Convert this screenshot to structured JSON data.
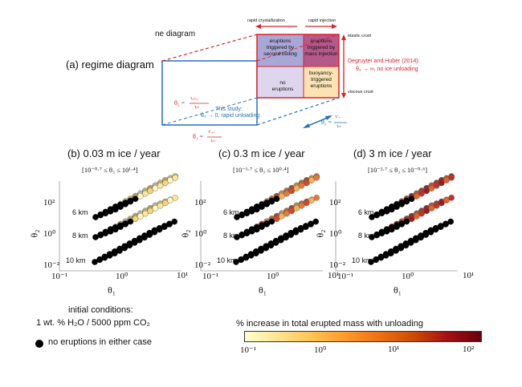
{
  "diagram": {
    "corner_title": "ne diagram",
    "panel_a_title": "(a) regime diagram",
    "top_left_arrow": "rapid crystallization",
    "top_right_arrow": "rapid injection",
    "elastic": "elastic crust",
    "viscous": "viscous crust",
    "region_boiling": "eruptions triggered by second boiling",
    "region_mass": "eruptions triggered by mass injection",
    "region_none": "no eruptions",
    "region_buoy": "buoyancy-triggered eruptions",
    "degruyter_1": "Degruyter and Huber (2014):",
    "degruyter_2": "θ₃ → ∞, no ice unloading",
    "study_1": "This study:",
    "study_2": "θ₃ → 0, rapid unloading",
    "theta2_lhs": "θ₂ =",
    "theta2_num": "τᵣₑₗₐₓ",
    "theta2_den": "τᵢₙ",
    "theta1_lhs": "θ₁ =",
    "theta1_num": "τᶜₒₒₗ",
    "theta1_den": "τᵢₙ",
    "theta3_lhs": "θ₃ =",
    "theta3_num": "τᵢᶜₑ",
    "theta3_den": "τᵢₙ",
    "colors": {
      "boiling": "#a9a7d6",
      "mass": "#b5598a",
      "buoy": "#fbe3b4",
      "blue": "#2a6fb5",
      "red": "#d8232a"
    }
  },
  "panels": [
    {
      "title": "(b) 0.03 m ice / year",
      "range": "[10⁻⁰·⁷ ≤ θ₃ ≤ 10¹·⁴]",
      "palette": [
        "#fff5c0",
        "#fbe79a",
        "#f4d47a"
      ]
    },
    {
      "title": "(c) 0.3 m ice / year",
      "range": "[10⁻¹·⁷ ≤ θ₃ ≤ 10⁰·⁴]",
      "palette": [
        "#f5b05a",
        "#e5793a",
        "#cf4a2a"
      ]
    },
    {
      "title": "(d) 3 m ice / year",
      "range": "[10⁻²·⁷ ≤ θ₃ ≤ 10⁻⁰·⁶]",
      "palette": [
        "#e4622e",
        "#c33224",
        "#9a1c1f"
      ]
    }
  ],
  "axes": {
    "ylabel": "θ₂",
    "xlabel": "θ₁",
    "yticks": [
      "10²",
      "10⁰",
      "10⁻²"
    ],
    "xticks": [
      "10⁻¹",
      "10⁰",
      "10¹"
    ],
    "depths": [
      "6 km",
      "8 km",
      "10 km"
    ]
  },
  "legend": {
    "init_1": "initial conditions:",
    "init_2": "1 wt. % H₂O / 5000 ppm CO₂",
    "no_eruptions": "no eruptions in either case"
  },
  "colorbar": {
    "title": "% increase in total erupted mass with unloading",
    "ticks": [
      "10⁻¹",
      "10⁰",
      "10¹",
      "10²"
    ],
    "colors": [
      "#ffffcc",
      "#fee391",
      "#fec44f",
      "#fe9929",
      "#ec7014",
      "#cc4c02",
      "#a50f15",
      "#67000d"
    ]
  }
}
